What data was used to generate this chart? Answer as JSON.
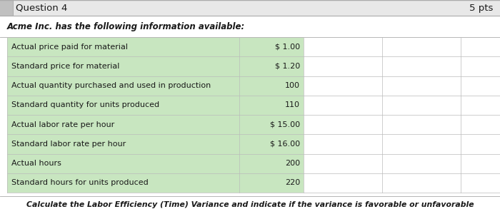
{
  "question_label": "Question 4",
  "pts_label": "5 pts",
  "intro_text": "Acme Inc. has the following information available:",
  "rows": [
    {
      "label": "Actual price paid for material",
      "value": "$ 1.00"
    },
    {
      "label": "Standard price for material",
      "value": "$ 1.20"
    },
    {
      "label": "Actual quantity purchased and used in production",
      "value": "100"
    },
    {
      "label": "Standard quantity for units produced",
      "value": "110"
    },
    {
      "label": "Actual labor rate per hour",
      "value": "$ 15.00"
    },
    {
      "label": "Standard labor rate per hour",
      "value": "$ 16.00"
    },
    {
      "label": "Actual hours",
      "value": "200"
    },
    {
      "label": "Standard hours for units produced",
      "value": "220"
    }
  ],
  "footer_text": "Calculate the Labor Efficiency (Time) Variance and indicate if the variance is favorable or unfavorable",
  "outer_bg": "#d8d8d8",
  "header_bg": "#e8e8e8",
  "white_bg": "#ffffff",
  "table_bg": "#c8e6c0",
  "border_color": "#aaaaaa",
  "text_color": "#1a1a1a",
  "footer_bg": "#e8e8e8",
  "grid_color": "#bbbbbb"
}
